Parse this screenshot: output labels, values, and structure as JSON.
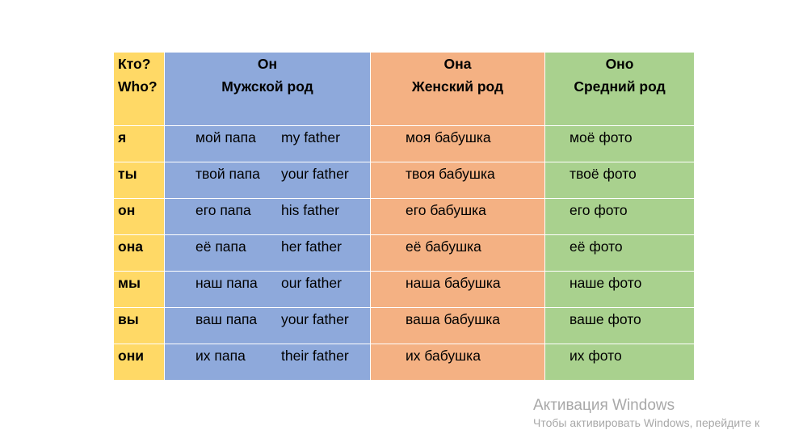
{
  "header": {
    "who": [
      "Кто?",
      "Who?"
    ],
    "masculine": [
      "Он",
      "Мужской род"
    ],
    "feminine": [
      "Она",
      "Женский род"
    ],
    "neuter": [
      "Оно",
      "Средний род"
    ]
  },
  "rows": [
    {
      "pronoun": "я",
      "masc_ru": "мой папа",
      "masc_en": "my father",
      "fem": "моя бабушка",
      "neut": "моё фото"
    },
    {
      "pronoun": "ты",
      "masc_ru": "твой папа",
      "masc_en": "your father",
      "fem": "твоя бабушка",
      "neut": "твоё фото"
    },
    {
      "pronoun": "он",
      "masc_ru": "его папа",
      "masc_en": "his father",
      "fem": "его бабушка",
      "neut": "его фото"
    },
    {
      "pronoun": "она",
      "masc_ru": "её папа",
      "masc_en": "her father",
      "fem": "её бабушка",
      "neut": "её фото"
    },
    {
      "pronoun": "мы",
      "masc_ru": "наш папа",
      "masc_en": "our father",
      "fem": "наша бабушка",
      "neut": "наше фото"
    },
    {
      "pronoun": "вы",
      "masc_ru": "ваш папа",
      "masc_en": "your father",
      "fem": "ваша бабушка",
      "neut": "ваше фото"
    },
    {
      "pronoun": "они",
      "masc_ru": "их папа",
      "masc_en": "their father",
      "fem": "их бабушка",
      "neut": "их фото"
    }
  ],
  "colors": {
    "who": "#FFD966",
    "masculine": "#8EA9DB",
    "feminine": "#F4B183",
    "neuter": "#A9D18E"
  },
  "watermark": {
    "title": "Активация Windows",
    "subtitle": "Чтобы активировать Windows, перейдите к"
  }
}
